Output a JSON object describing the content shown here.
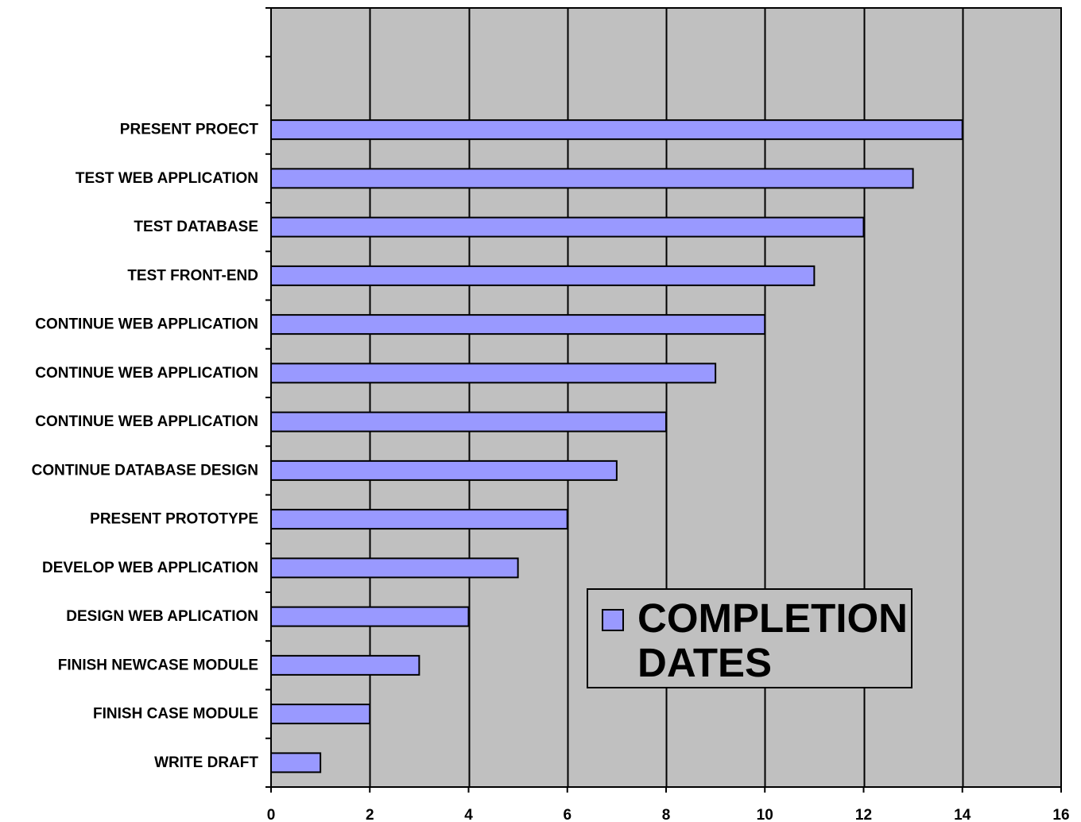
{
  "chart_data": {
    "type": "bar",
    "orientation": "horizontal",
    "categories": [
      "WRITE DRAFT",
      "FINISH CASE MODULE",
      "FINISH NEWCASE MODULE",
      "DESIGN WEB APLICATION",
      "DEVELOP WEB APPLICATION",
      "PRESENT PROTOTYPE",
      "CONTINUE DATABASE DESIGN",
      "CONTINUE WEB APPLICATION",
      "CONTINUE WEB APPLICATION",
      "CONTINUE WEB APPLICATION",
      "TEST FRONT-END",
      "TEST DATABASE",
      "TEST WEB APPLICATION",
      "PRESENT PROECT"
    ],
    "empty_category_slots_above": 2,
    "series": [
      {
        "name": "COMPLETION DATES",
        "values": [
          1,
          2,
          3,
          4,
          5,
          6,
          7,
          8,
          9,
          10,
          11,
          12,
          13,
          14
        ],
        "color": "#9999ff"
      }
    ],
    "xlim": [
      0,
      16
    ],
    "xticks": [
      "0",
      "2",
      "4",
      "6",
      "8",
      "10",
      "12",
      "14",
      "16"
    ],
    "grid": "vertical",
    "legend": "bottom-right",
    "plot_background": "#c0c0c0",
    "title": "",
    "xlabel": "",
    "ylabel": ""
  },
  "legend": {
    "label": "COMPLETION DATES",
    "swatch_color": "#9999ff",
    "background": "#c0c0c0"
  }
}
